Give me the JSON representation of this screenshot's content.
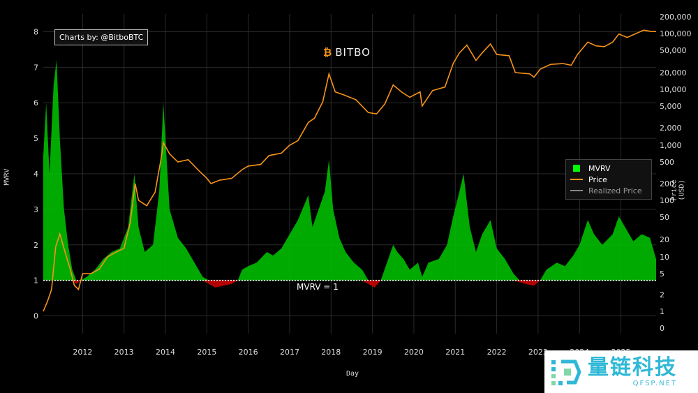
{
  "credit": "Charts by: @BitboBTC",
  "brand": "BITBO",
  "legend": [
    {
      "label": "MVRV",
      "color": "#00ff00",
      "kind": "box"
    },
    {
      "label": "Price",
      "color": "#f7931a",
      "kind": "line"
    },
    {
      "label": "Realized Price",
      "color": "#888888",
      "kind": "line"
    }
  ],
  "reference_label": "MVRV = 1",
  "watermark": {
    "cn": "量链科技",
    "en": "QFSP.NET"
  },
  "chart_data": {
    "type": "area",
    "xlabel": "Day",
    "ylabel_left": "MVRV",
    "ylabel_right": "Price (USD)",
    "x_ticks": [
      "2012",
      "2013",
      "2014",
      "2015",
      "2016",
      "2017",
      "2018",
      "2019",
      "2020",
      "2021",
      "2022",
      "2023",
      "2024",
      "2025"
    ],
    "x_range": [
      2011.05,
      2025.85
    ],
    "left_axis": {
      "ticks": [
        0,
        1,
        2,
        3,
        4,
        5,
        6,
        7,
        8
      ],
      "ylim": [
        -0.5,
        8.5
      ]
    },
    "right_axis": {
      "ticks": [
        {
          "label": "200,000",
          "value": 200000
        },
        {
          "label": "100,000",
          "value": 100000
        },
        {
          "label": "50,000",
          "value": 50000
        },
        {
          "label": "20,000",
          "value": 20000
        },
        {
          "label": "10,000",
          "value": 10000
        },
        {
          "label": "5,000",
          "value": 5000
        },
        {
          "label": "2,000",
          "value": 2000
        },
        {
          "label": "1,000",
          "value": 1000
        },
        {
          "label": "500",
          "value": 500
        },
        {
          "label": "200",
          "value": 200
        },
        {
          "label": "100",
          "value": 100
        },
        {
          "label": "50",
          "value": 50
        },
        {
          "label": "20",
          "value": 20
        },
        {
          "label": "10",
          "value": 10
        },
        {
          "label": "5",
          "value": 5
        },
        {
          "label": "2",
          "value": 2
        },
        {
          "label": "1",
          "value": 1
        },
        {
          "label": "0",
          "value": 0
        }
      ]
    },
    "series": [
      {
        "name": "MVRV",
        "color_above": "#00c800",
        "color_below": "#c80000",
        "baseline": 1,
        "points": [
          [
            2011.05,
            4.5
          ],
          [
            2011.12,
            6.0
          ],
          [
            2011.2,
            4.0
          ],
          [
            2011.3,
            6.5
          ],
          [
            2011.37,
            7.2
          ],
          [
            2011.45,
            5.0
          ],
          [
            2011.55,
            3.0
          ],
          [
            2011.65,
            2.0
          ],
          [
            2011.75,
            1.3
          ],
          [
            2011.85,
            0.9
          ],
          [
            2011.95,
            1.0
          ],
          [
            2012.1,
            1.1
          ],
          [
            2012.3,
            1.3
          ],
          [
            2012.5,
            1.6
          ],
          [
            2012.7,
            1.8
          ],
          [
            2012.9,
            1.9
          ],
          [
            2013.1,
            2.5
          ],
          [
            2013.25,
            4.0
          ],
          [
            2013.35,
            2.5
          ],
          [
            2013.5,
            1.8
          ],
          [
            2013.7,
            2.0
          ],
          [
            2013.85,
            3.5
          ],
          [
            2013.95,
            6.0
          ],
          [
            2014.1,
            3.0
          ],
          [
            2014.3,
            2.2
          ],
          [
            2014.5,
            1.9
          ],
          [
            2014.7,
            1.5
          ],
          [
            2014.9,
            1.1
          ],
          [
            2015.05,
            0.9
          ],
          [
            2015.2,
            0.8
          ],
          [
            2015.4,
            0.85
          ],
          [
            2015.6,
            0.9
          ],
          [
            2015.75,
            1.0
          ],
          [
            2015.85,
            1.3
          ],
          [
            2016.0,
            1.4
          ],
          [
            2016.2,
            1.5
          ],
          [
            2016.45,
            1.8
          ],
          [
            2016.6,
            1.7
          ],
          [
            2016.8,
            1.9
          ],
          [
            2017.0,
            2.3
          ],
          [
            2017.2,
            2.7
          ],
          [
            2017.45,
            3.4
          ],
          [
            2017.55,
            2.5
          ],
          [
            2017.7,
            3.0
          ],
          [
            2017.85,
            3.5
          ],
          [
            2017.95,
            4.4
          ],
          [
            2018.05,
            3.0
          ],
          [
            2018.2,
            2.2
          ],
          [
            2018.35,
            1.8
          ],
          [
            2018.55,
            1.5
          ],
          [
            2018.75,
            1.3
          ],
          [
            2018.9,
            0.9
          ],
          [
            2019.05,
            0.8
          ],
          [
            2019.2,
            1.0
          ],
          [
            2019.35,
            1.5
          ],
          [
            2019.5,
            2.0
          ],
          [
            2019.6,
            1.8
          ],
          [
            2019.75,
            1.6
          ],
          [
            2019.9,
            1.3
          ],
          [
            2020.1,
            1.5
          ],
          [
            2020.2,
            1.1
          ],
          [
            2020.35,
            1.5
          ],
          [
            2020.6,
            1.6
          ],
          [
            2020.8,
            2.0
          ],
          [
            2020.95,
            2.8
          ],
          [
            2021.1,
            3.5
          ],
          [
            2021.2,
            4.0
          ],
          [
            2021.35,
            2.5
          ],
          [
            2021.5,
            1.8
          ],
          [
            2021.65,
            2.3
          ],
          [
            2021.85,
            2.7
          ],
          [
            2022.0,
            1.9
          ],
          [
            2022.2,
            1.6
          ],
          [
            2022.4,
            1.2
          ],
          [
            2022.55,
            0.95
          ],
          [
            2022.7,
            0.9
          ],
          [
            2022.9,
            0.85
          ],
          [
            2023.05,
            1.0
          ],
          [
            2023.2,
            1.3
          ],
          [
            2023.45,
            1.5
          ],
          [
            2023.65,
            1.4
          ],
          [
            2023.85,
            1.7
          ],
          [
            2024.0,
            2.0
          ],
          [
            2024.2,
            2.7
          ],
          [
            2024.35,
            2.3
          ],
          [
            2024.55,
            2.0
          ],
          [
            2024.8,
            2.3
          ],
          [
            2024.95,
            2.8
          ],
          [
            2025.1,
            2.5
          ],
          [
            2025.3,
            2.1
          ],
          [
            2025.5,
            2.3
          ],
          [
            2025.7,
            2.2
          ],
          [
            2025.85,
            1.6
          ]
        ]
      },
      {
        "name": "Price",
        "color": "#f7931a",
        "points": [
          [
            2011.05,
            1
          ],
          [
            2011.15,
            1.5
          ],
          [
            2011.25,
            2.5
          ],
          [
            2011.35,
            15
          ],
          [
            2011.45,
            25
          ],
          [
            2011.55,
            14
          ],
          [
            2011.7,
            6
          ],
          [
            2011.8,
            3
          ],
          [
            2011.9,
            2.5
          ],
          [
            2012.0,
            5
          ],
          [
            2012.2,
            5
          ],
          [
            2012.4,
            6
          ],
          [
            2012.6,
            10
          ],
          [
            2012.8,
            12
          ],
          [
            2013.0,
            14
          ],
          [
            2013.15,
            40
          ],
          [
            2013.27,
            200
          ],
          [
            2013.35,
            100
          ],
          [
            2013.55,
            80
          ],
          [
            2013.75,
            140
          ],
          [
            2013.9,
            600
          ],
          [
            2013.95,
            1100
          ],
          [
            2014.1,
            700
          ],
          [
            2014.3,
            500
          ],
          [
            2014.55,
            550
          ],
          [
            2014.8,
            350
          ],
          [
            2015.0,
            250
          ],
          [
            2015.1,
            200
          ],
          [
            2015.3,
            230
          ],
          [
            2015.6,
            250
          ],
          [
            2015.85,
            360
          ],
          [
            2016.0,
            420
          ],
          [
            2016.3,
            450
          ],
          [
            2016.5,
            650
          ],
          [
            2016.8,
            720
          ],
          [
            2017.0,
            1000
          ],
          [
            2017.2,
            1200
          ],
          [
            2017.45,
            2500
          ],
          [
            2017.6,
            3000
          ],
          [
            2017.8,
            6000
          ],
          [
            2017.95,
            19000
          ],
          [
            2018.1,
            9000
          ],
          [
            2018.3,
            8000
          ],
          [
            2018.6,
            6500
          ],
          [
            2018.9,
            3800
          ],
          [
            2019.1,
            3600
          ],
          [
            2019.3,
            5500
          ],
          [
            2019.5,
            12000
          ],
          [
            2019.7,
            9000
          ],
          [
            2019.9,
            7200
          ],
          [
            2020.15,
            9000
          ],
          [
            2020.2,
            5000
          ],
          [
            2020.45,
            9500
          ],
          [
            2020.75,
            11000
          ],
          [
            2020.95,
            29000
          ],
          [
            2021.1,
            45000
          ],
          [
            2021.28,
            62000
          ],
          [
            2021.5,
            33000
          ],
          [
            2021.65,
            45000
          ],
          [
            2021.85,
            65000
          ],
          [
            2022.0,
            42000
          ],
          [
            2022.3,
            40000
          ],
          [
            2022.45,
            20000
          ],
          [
            2022.8,
            19000
          ],
          [
            2022.9,
            16500
          ],
          [
            2023.05,
            23000
          ],
          [
            2023.3,
            28000
          ],
          [
            2023.6,
            29000
          ],
          [
            2023.8,
            27000
          ],
          [
            2023.95,
            42000
          ],
          [
            2024.2,
            70000
          ],
          [
            2024.4,
            60000
          ],
          [
            2024.6,
            58000
          ],
          [
            2024.8,
            70000
          ],
          [
            2024.95,
            98000
          ],
          [
            2025.15,
            85000
          ],
          [
            2025.3,
            95000
          ],
          [
            2025.55,
            115000
          ],
          [
            2025.7,
            110000
          ],
          [
            2025.85,
            108000
          ]
        ]
      }
    ]
  }
}
